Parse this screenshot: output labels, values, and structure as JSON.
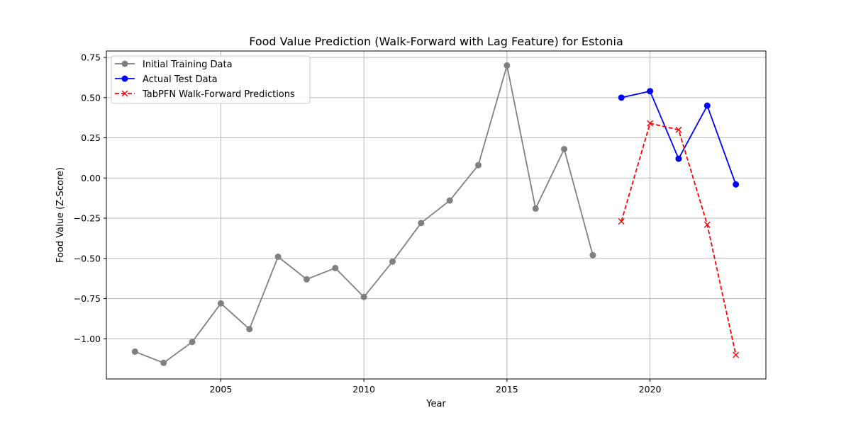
{
  "chart_data": {
    "type": "line",
    "title": "Food Value Prediction (Walk-Forward with Lag Feature) for Estonia",
    "xlabel": "Year",
    "ylabel": "Food Value (Z-Score)",
    "xlim": [
      2001.0,
      2024.05
    ],
    "ylim": [
      -1.25,
      0.79
    ],
    "x_ticks": [
      2005,
      2010,
      2015,
      2020
    ],
    "x_tick_labels": [
      "2005",
      "2010",
      "2015",
      "2020"
    ],
    "y_ticks": [
      0.75,
      0.5,
      0.25,
      0.0,
      -0.25,
      -0.5,
      -0.75,
      -1.0
    ],
    "y_tick_labels": [
      "0.75",
      "0.50",
      "0.25",
      "0.00",
      "−0.25",
      "−0.50",
      "−0.75",
      "−1.00"
    ],
    "grid": true,
    "legend_position": "upper-left",
    "series": [
      {
        "name": "Initial Training Data",
        "color": "#808080",
        "line_style": "solid",
        "marker": "circle",
        "x": [
          2002,
          2003,
          2004,
          2005,
          2006,
          2007,
          2008,
          2009,
          2010,
          2011,
          2012,
          2013,
          2014,
          2015,
          2016,
          2017,
          2018
        ],
        "y": [
          -1.08,
          -1.15,
          -1.02,
          -0.78,
          -0.94,
          -0.49,
          -0.63,
          -0.56,
          -0.74,
          -0.52,
          -0.28,
          -0.14,
          0.08,
          0.7,
          -0.19,
          0.18,
          -0.48
        ]
      },
      {
        "name": "Actual Test Data",
        "color": "#0000ff",
        "line_style": "solid",
        "marker": "circle",
        "x": [
          2019,
          2020,
          2021,
          2022,
          2023
        ],
        "y": [
          0.5,
          0.54,
          0.12,
          0.45,
          -0.04
        ]
      },
      {
        "name": "TabPFN Walk-Forward Predictions",
        "color": "#ff0000",
        "line_style": "dashed",
        "marker": "x",
        "x": [
          2019,
          2020,
          2021,
          2022,
          2023
        ],
        "y": [
          -0.27,
          0.34,
          0.3,
          -0.29,
          -1.1
        ]
      }
    ]
  }
}
